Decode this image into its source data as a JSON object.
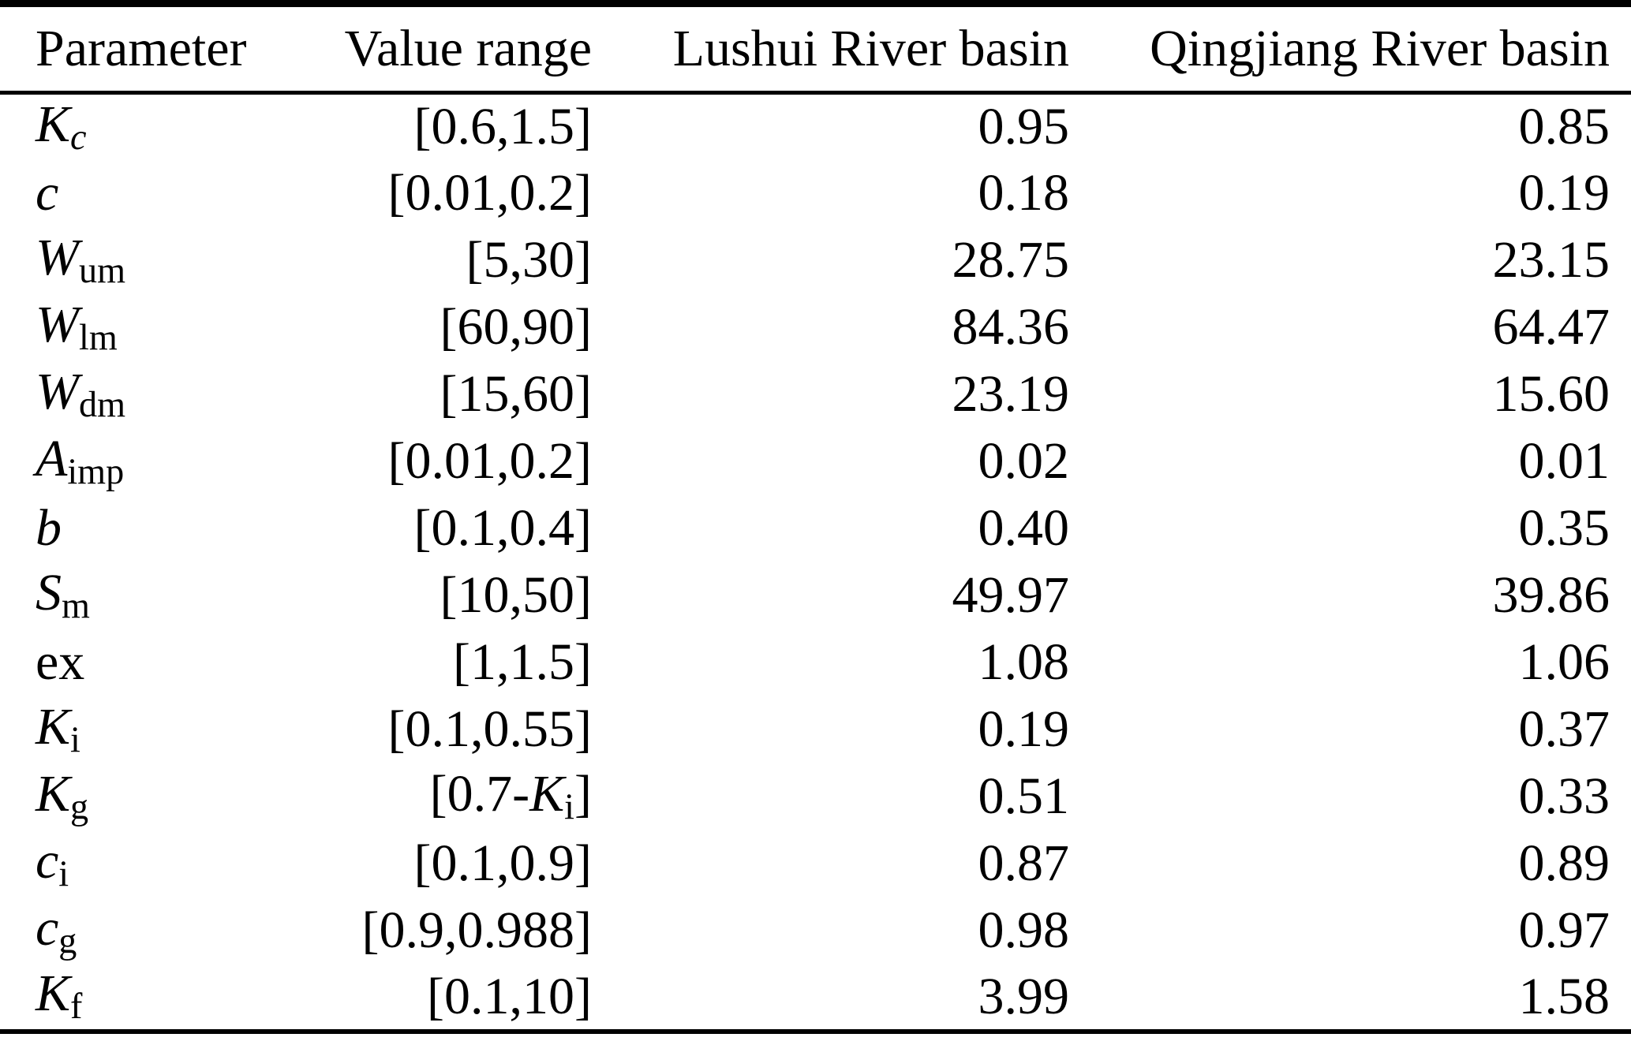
{
  "colors": {
    "background": "#ffffff",
    "text": "#000000",
    "rules": "#000000"
  },
  "table": {
    "columns": [
      "Parameter",
      "Value range",
      "Lushui River basin",
      "Qingjiang River basin"
    ],
    "rows": [
      {
        "parameter": [
          {
            "t": "K",
            "i": true
          },
          {
            "t": "c",
            "i": true,
            "sub": true
          }
        ],
        "value_range": [
          {
            "t": "[0.6,1.5]"
          }
        ],
        "lushui": "0.95",
        "qingjiang": "0.85"
      },
      {
        "parameter": [
          {
            "t": "c",
            "i": true
          }
        ],
        "value_range": [
          {
            "t": "[0.01,0.2]"
          }
        ],
        "lushui": "0.18",
        "qingjiang": "0.19"
      },
      {
        "parameter": [
          {
            "t": "W",
            "i": true
          },
          {
            "t": "um",
            "sub": true
          }
        ],
        "value_range": [
          {
            "t": "[5,30]"
          }
        ],
        "lushui": "28.75",
        "qingjiang": "23.15"
      },
      {
        "parameter": [
          {
            "t": "W",
            "i": true
          },
          {
            "t": "lm",
            "sub": true
          }
        ],
        "value_range": [
          {
            "t": "[60,90]"
          }
        ],
        "lushui": "84.36",
        "qingjiang": "64.47"
      },
      {
        "parameter": [
          {
            "t": "W",
            "i": true
          },
          {
            "t": "dm",
            "sub": true
          }
        ],
        "value_range": [
          {
            "t": "[15,60]"
          }
        ],
        "lushui": "23.19",
        "qingjiang": "15.60"
      },
      {
        "parameter": [
          {
            "t": "A",
            "i": true
          },
          {
            "t": "imp",
            "sub": true
          }
        ],
        "value_range": [
          {
            "t": "[0.01,0.2]"
          }
        ],
        "lushui": "0.02",
        "qingjiang": "0.01"
      },
      {
        "parameter": [
          {
            "t": "b",
            "i": true
          }
        ],
        "value_range": [
          {
            "t": "[0.1,0.4]"
          }
        ],
        "lushui": "0.40",
        "qingjiang": "0.35"
      },
      {
        "parameter": [
          {
            "t": "S",
            "i": true
          },
          {
            "t": "m",
            "sub": true
          }
        ],
        "value_range": [
          {
            "t": "[10,50]"
          }
        ],
        "lushui": "49.97",
        "qingjiang": "39.86"
      },
      {
        "parameter": [
          {
            "t": "ex"
          }
        ],
        "value_range": [
          {
            "t": "[1,1.5]"
          }
        ],
        "lushui": "1.08",
        "qingjiang": "1.06"
      },
      {
        "parameter": [
          {
            "t": "K",
            "i": true
          },
          {
            "t": "i",
            "sub": true
          }
        ],
        "value_range": [
          {
            "t": "[0.1,0.55]"
          }
        ],
        "lushui": "0.19",
        "qingjiang": "0.37"
      },
      {
        "parameter": [
          {
            "t": "K",
            "i": true
          },
          {
            "t": "g",
            "sub": true
          }
        ],
        "value_range": [
          {
            "t": "[0.7-"
          },
          {
            "t": "K",
            "i": true
          },
          {
            "t": "i",
            "sub": true
          },
          {
            "t": "]"
          }
        ],
        "lushui": "0.51",
        "qingjiang": "0.33"
      },
      {
        "parameter": [
          {
            "t": "c",
            "i": true
          },
          {
            "t": "i",
            "sub": true
          }
        ],
        "value_range": [
          {
            "t": "[0.1,0.9]"
          }
        ],
        "lushui": "0.87",
        "qingjiang": "0.89"
      },
      {
        "parameter": [
          {
            "t": "c",
            "i": true
          },
          {
            "t": "g",
            "sub": true
          }
        ],
        "value_range": [
          {
            "t": "[0.9,0.988]"
          }
        ],
        "lushui": "0.98",
        "qingjiang": "0.97"
      },
      {
        "parameter": [
          {
            "t": "K",
            "i": true
          },
          {
            "t": "f",
            "sub": true
          }
        ],
        "value_range": [
          {
            "t": "[0.1,10]"
          }
        ],
        "lushui": "3.99",
        "qingjiang": "1.58"
      }
    ]
  },
  "chart_data": {
    "type": "table",
    "columns": [
      "Parameter",
      "Value range",
      "Lushui River basin",
      "Qingjiang River basin"
    ],
    "rows": [
      [
        "Kc",
        "[0.6,1.5]",
        "0.95",
        "0.85"
      ],
      [
        "c",
        "[0.01,0.2]",
        "0.18",
        "0.19"
      ],
      [
        "Wum",
        "[5,30]",
        "28.75",
        "23.15"
      ],
      [
        "Wlm",
        "[60,90]",
        "84.36",
        "64.47"
      ],
      [
        "Wdm",
        "[15,60]",
        "23.19",
        "15.60"
      ],
      [
        "Aimp",
        "[0.01,0.2]",
        "0.02",
        "0.01"
      ],
      [
        "b",
        "[0.1,0.4]",
        "0.40",
        "0.35"
      ],
      [
        "Sm",
        "[10,50]",
        "49.97",
        "39.86"
      ],
      [
        "ex",
        "[1,1.5]",
        "1.08",
        "1.06"
      ],
      [
        "Ki",
        "[0.1,0.55]",
        "0.19",
        "0.37"
      ],
      [
        "Kg",
        "[0.7-Ki]",
        "0.51",
        "0.33"
      ],
      [
        "ci",
        "[0.1,0.9]",
        "0.87",
        "0.89"
      ],
      [
        "cg",
        "[0.9,0.988]",
        "0.98",
        "0.97"
      ],
      [
        "Kf",
        "[0.1,10]",
        "3.99",
        "1.58"
      ]
    ]
  }
}
